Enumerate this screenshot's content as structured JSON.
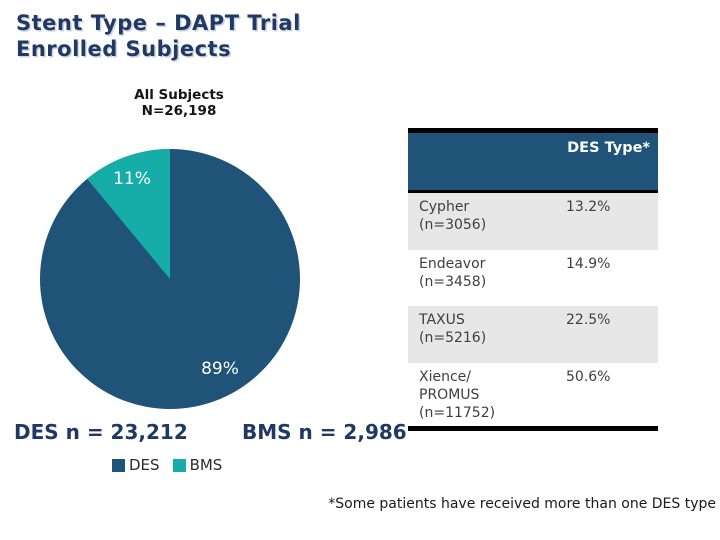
{
  "slide": {
    "title_line1": "Stent Type – DAPT Trial",
    "title_line2": "Enrolled Subjects",
    "footnote": "*Some patients have received more than one DES type"
  },
  "chart_data": {
    "type": "pie",
    "title": "All Subjects",
    "subtitle": "N=26,198",
    "categories": [
      "DES",
      "BMS"
    ],
    "values": [
      89,
      11
    ],
    "slice_labels": [
      "89%",
      "11%"
    ],
    "colors": [
      "#1F5377",
      "#16ADA8"
    ],
    "legend_position": "bottom",
    "annotations": {
      "des_n": "DES n = 23,212",
      "bms_n": "BMS n = 2,986"
    }
  },
  "legend": {
    "items": [
      "DES",
      "BMS"
    ]
  },
  "table": {
    "header": "DES Type*",
    "header_bg": "#1F5377",
    "alt_row_bg": "#E7E7E7",
    "rows": [
      {
        "label": "Cypher\n(n=3056)",
        "value": "13.2%"
      },
      {
        "label": "Endeavor\n(n=3458)",
        "value": "14.9%"
      },
      {
        "label": "TAXUS\n(n=5216)",
        "value": "22.5%"
      },
      {
        "label": "Xience/\nPROMUS\n(n=11752)",
        "value": "50.6%"
      }
    ]
  },
  "colors": {
    "title_navy": "#1F3864",
    "pie_navy": "#1F5377",
    "pie_teal": "#16ADA8",
    "bar_black": "#000000"
  }
}
